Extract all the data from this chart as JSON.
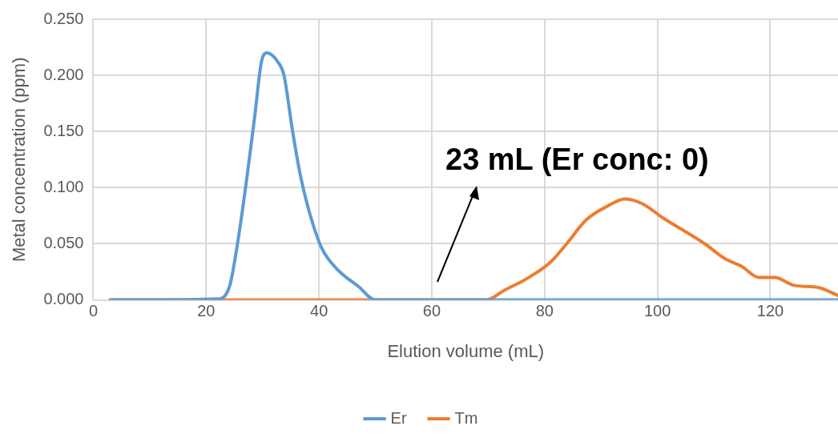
{
  "chart_data": {
    "type": "line",
    "xlabel": "Elution volume (mL)",
    "ylabel": "Metal concentration (ppm)",
    "xlim": [
      0,
      132
    ],
    "xticks": [
      0,
      20,
      40,
      60,
      80,
      100,
      120
    ],
    "ylim": [
      0,
      0.25
    ],
    "yticks": [
      {
        "value": 0,
        "label": "0.000"
      },
      {
        "value": 0.05,
        "label": "0.050"
      },
      {
        "value": 0.1,
        "label": "0.100"
      },
      {
        "value": 0.15,
        "label": "0.150"
      },
      {
        "value": 0.2,
        "label": "0.200"
      },
      {
        "value": 0.25,
        "label": "0.250"
      }
    ],
    "grid": true,
    "legend": "bottom",
    "marker": "none",
    "line_style": "solid",
    "annotations": [
      "23 mL (Er conc: 0)"
    ],
    "series": [
      {
        "name": "Er",
        "color": "#5b9bd5",
        "x": [
          3,
          22.4,
          24.2,
          25.4,
          27.1,
          28.6,
          29.8,
          30.8,
          32.7,
          33.8,
          35.3,
          36.7,
          38.6,
          40.6,
          43.5,
          47.0,
          50,
          132
        ],
        "values": [
          0,
          0.001,
          0.013,
          0.045,
          0.104,
          0.163,
          0.212,
          0.22,
          0.212,
          0.2,
          0.151,
          0.111,
          0.073,
          0.045,
          0.026,
          0.012,
          0,
          0
        ]
      },
      {
        "name": "Tm",
        "color": "#ed7d31",
        "x": [
          3,
          69.6,
          73.0,
          76.5,
          80.9,
          83.9,
          87.3,
          91.3,
          94.2,
          97.2,
          101.0,
          108.4,
          111.9,
          114.9,
          118.0,
          120.8,
          124.2,
          128.6,
          132
        ],
        "values": [
          0,
          0,
          0.009,
          0.018,
          0.033,
          0.05,
          0.071,
          0.084,
          0.09,
          0.086,
          0.073,
          0.05,
          0.037,
          0.03,
          0.02,
          0.02,
          0.013,
          0.011,
          0.004
        ]
      }
    ]
  }
}
